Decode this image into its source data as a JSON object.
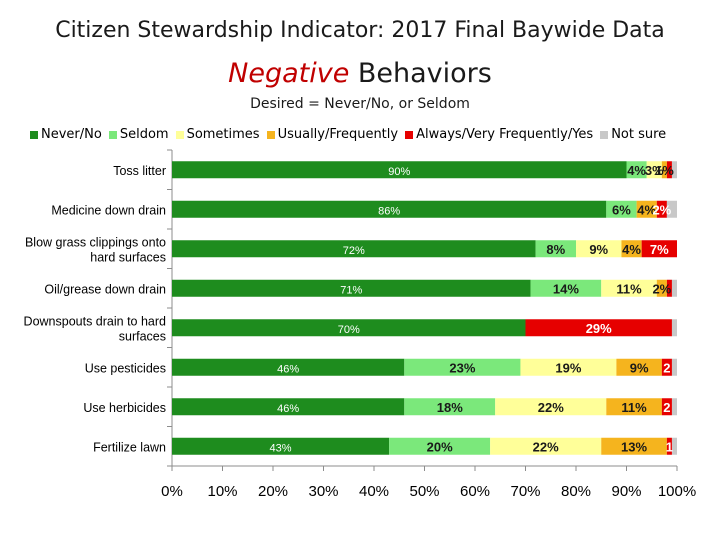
{
  "header": {
    "title": "Citizen Stewardship Indicator: 2017 Final Baywide Data",
    "subtitle_emphasis": "Negative",
    "subtitle_rest": " Behaviors",
    "desired": "Desired = Never/No, or Seldom"
  },
  "chart_data": {
    "type": "bar",
    "orientation": "horizontal",
    "stacked": true,
    "title": "Citizen Stewardship Indicator: 2017 Final Baywide Data",
    "subtitle": "Negative Behaviors",
    "xlim": [
      0,
      100
    ],
    "x_ticks": [
      "0%",
      "10%",
      "20%",
      "30%",
      "40%",
      "50%",
      "60%",
      "70%",
      "80%",
      "90%",
      "100%"
    ],
    "legend_position": "top",
    "grid": false,
    "categories": [
      "Toss litter",
      "Medicine down drain",
      "Blow grass clippings onto hard surfaces",
      "Oil/grease down drain",
      "Downspouts drain to hard surfaces",
      "Use pesticides",
      "Use herbicides",
      "Fertilize lawn"
    ],
    "series": [
      {
        "name": "Never/No",
        "color": "#1e8c1e",
        "values": [
          90,
          86,
          72,
          71,
          70,
          46,
          46,
          43
        ],
        "labels": [
          "90%",
          "86%",
          "72%",
          "71%",
          "70%",
          "46%",
          "46%",
          "43%"
        ]
      },
      {
        "name": "Seldom",
        "color": "#7be87b",
        "values": [
          4,
          6,
          8,
          14,
          0,
          23,
          18,
          20
        ],
        "labels": [
          "4%",
          "6%",
          "8%",
          "14%",
          "",
          "23%",
          "18%",
          "20%"
        ]
      },
      {
        "name": "Sometimes",
        "color": "#ffff99",
        "values": [
          3,
          0,
          9,
          11,
          0,
          19,
          22,
          22
        ],
        "labels": [
          "3%",
          "",
          "9%",
          "11%",
          "",
          "19%",
          "22%",
          "22%"
        ]
      },
      {
        "name": "Usually/Frequently",
        "color": "#f5b41e",
        "values": [
          1,
          4,
          4,
          2,
          0,
          9,
          11,
          13
        ],
        "labels": [
          "1%",
          "4%",
          "4%",
          "2%",
          "",
          "9%",
          "11%",
          "13%"
        ]
      },
      {
        "name": "Always/Very Frequently/Yes",
        "color": "#e60000",
        "values": [
          1,
          2,
          7,
          1,
          29,
          2,
          2,
          1
        ],
        "labels": [
          "",
          "2%",
          "7%",
          "",
          "29%",
          "2",
          "2",
          "1"
        ]
      },
      {
        "name": "Not sure",
        "color": "#c8c8c8",
        "values": [
          1,
          2,
          0,
          1,
          1,
          1,
          1,
          1
        ],
        "labels": [
          "",
          "",
          "",
          "",
          "",
          "",
          "",
          ""
        ]
      }
    ]
  }
}
